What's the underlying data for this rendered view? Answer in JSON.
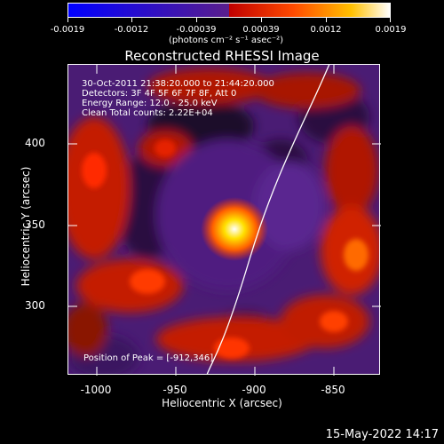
{
  "colorbar": {
    "tick_labels": [
      "-0.0019",
      "-0.0012",
      "-0.00039",
      "0.00039",
      "0.0012",
      "0.0019"
    ],
    "units_label": "(photons cm⁻² s⁻¹ asec⁻²)",
    "colors": [
      "#0000ff",
      "#5a1e8c",
      "#ff2a00",
      "#ffa000",
      "#ffffff"
    ]
  },
  "plot": {
    "title": "Reconstructed RHESSI Image",
    "info_lines": [
      "30-Oct-2011 21:38:20.000 to 21:44:20.000",
      "Detectors: 3F 4F 5F 6F 7F 8F, Att 0",
      "Energy Range: 12.0 - 25.0 keV",
      "Clean     Total counts: 2.22E+04"
    ],
    "peak_label": "Position of Peak = [-912,346]",
    "x_axis_label": "Heliocentric X (arcsec)",
    "y_axis_label": "Heliocentric Y (arcsec)",
    "x_ticks": [
      "-1000",
      "-950",
      "-900",
      "-850"
    ],
    "y_ticks": [
      "400",
      "350",
      "300"
    ]
  },
  "timestamp": "15-May-2022 14:17"
}
